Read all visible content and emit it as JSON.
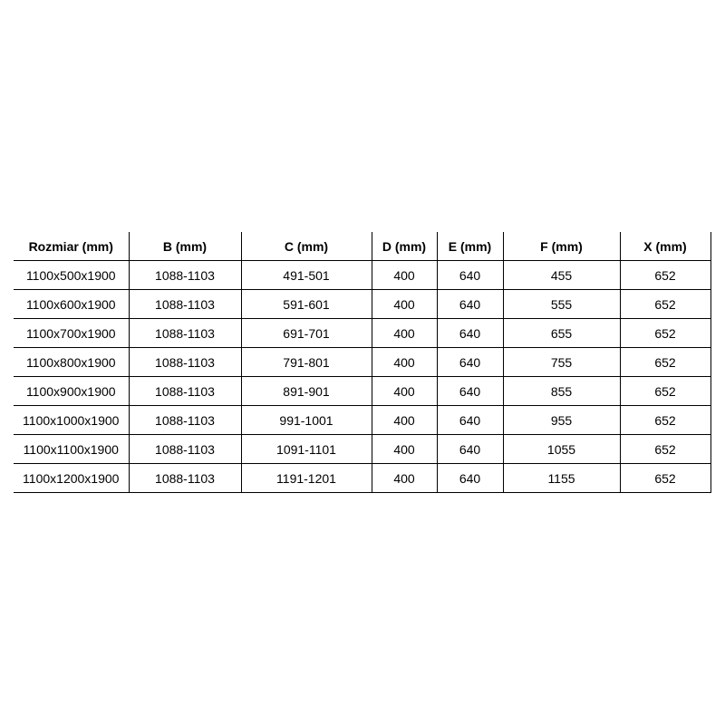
{
  "table": {
    "headers": [
      "Rozmiar (mm)",
      "B (mm)",
      "C (mm)",
      "D (mm)",
      "E (mm)",
      "F (mm)",
      "X (mm)"
    ],
    "rows": [
      [
        "1100x500x1900",
        "1088-1103",
        "491-501",
        "400",
        "640",
        "455",
        "652"
      ],
      [
        "1100x600x1900",
        "1088-1103",
        "591-601",
        "400",
        "640",
        "555",
        "652"
      ],
      [
        "1100x700x1900",
        "1088-1103",
        "691-701",
        "400",
        "640",
        "655",
        "652"
      ],
      [
        "1100x800x1900",
        "1088-1103",
        "791-801",
        "400",
        "640",
        "755",
        "652"
      ],
      [
        "1100x900x1900",
        "1088-1103",
        "891-901",
        "400",
        "640",
        "855",
        "652"
      ],
      [
        "1100x1000x1900",
        "1088-1103",
        "991-1001",
        "400",
        "640",
        "955",
        "652"
      ],
      [
        "1100x1100x1900",
        "1088-1103",
        "1091-1101",
        "400",
        "640",
        "1055",
        "652"
      ],
      [
        "1100x1200x1900",
        "1088-1103",
        "1191-1201",
        "400",
        "640",
        "1155",
        "652"
      ]
    ]
  }
}
